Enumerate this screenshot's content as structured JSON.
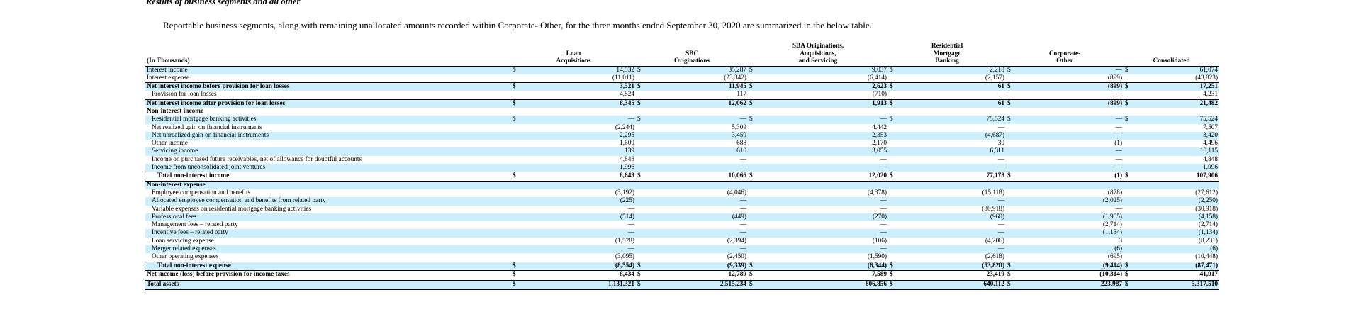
{
  "heading": "Results of business segments and all other",
  "intro": "Reportable business segments, along with remaining unallocated amounts recorded within Corporate- Other, for the three months ended September 30, 2020 are summarized in the below table.",
  "table": {
    "label_header": "(In Thousands)",
    "columns": [
      {
        "lines": [
          "Loan",
          "Acquisitions"
        ]
      },
      {
        "lines": [
          "SBC",
          "Originations"
        ]
      },
      {
        "lines": [
          "SBA Originations,",
          "Acquisitions,",
          "and Servicing"
        ]
      },
      {
        "lines": [
          "Residential",
          "Mortgage",
          "Banking"
        ]
      },
      {
        "lines": [
          "Corporate-",
          "Other"
        ]
      },
      {
        "lines": [
          "Consolidated"
        ]
      }
    ],
    "rows": [
      {
        "label": "Interest income",
        "dollar": true,
        "values": [
          "14,532",
          "35,287",
          "9,037",
          "2,218",
          "—",
          "61,074"
        ],
        "shade": true
      },
      {
        "label": "Interest expense",
        "values": [
          "(11,011)",
          "(23,342)",
          "(6,414)",
          "(2,157)",
          "(899)",
          "(43,823)"
        ],
        "shade": false,
        "bottomline": true
      },
      {
        "label": "Net interest income before provision for loan losses",
        "bold": true,
        "dollar": true,
        "values": [
          "3,521",
          "11,945",
          "2,623",
          "61",
          "(899)",
          "17,251"
        ],
        "shade": true
      },
      {
        "label": "Provision for loan losses",
        "indent": 1,
        "values": [
          "4,824",
          "117",
          "(710)",
          "—",
          "—",
          "4,231"
        ],
        "shade": false,
        "bottomline": true
      },
      {
        "label": "Net interest income after provision for loan losses",
        "bold": true,
        "dollar": true,
        "values": [
          "8,345",
          "12,062",
          "1,913",
          "61",
          "(899)",
          "21,482"
        ],
        "shade": true
      },
      {
        "label": "Non-interest income",
        "bold": true,
        "section": true,
        "values": [
          "",
          "",
          "",
          "",
          "",
          ""
        ],
        "shade": false
      },
      {
        "label": "Residential mortgage banking activities",
        "indent": 1,
        "dollar": true,
        "values": [
          "—",
          "—",
          "—",
          "75,524",
          "—",
          "75,524"
        ],
        "shade": true
      },
      {
        "label": "Net realized gain on financial instruments",
        "indent": 1,
        "values": [
          "(2,244)",
          "5,309",
          "4,442",
          "—",
          "—",
          "7,507"
        ],
        "shade": false
      },
      {
        "label": "Net unrealized gain on financial instruments",
        "indent": 1,
        "values": [
          "2,295",
          "3,459",
          "2,353",
          "(4,687)",
          "—",
          "3,420"
        ],
        "shade": true
      },
      {
        "label": "Other income",
        "indent": 1,
        "values": [
          "1,609",
          "688",
          "2,170",
          "30",
          "(1)",
          "4,496"
        ],
        "shade": false
      },
      {
        "label": "Servicing income",
        "indent": 1,
        "values": [
          "139",
          "610",
          "3,055",
          "6,311",
          "—",
          "10,115"
        ],
        "shade": true
      },
      {
        "label": "Income on purchased future receivables, net of allowance for doubtful accounts",
        "indent": 1,
        "values": [
          "4,848",
          "—",
          "—",
          "—",
          "—",
          "4,848"
        ],
        "shade": false
      },
      {
        "label": "Income from unconsolidated joint ventures",
        "indent": 1,
        "values": [
          "1,996",
          "—",
          "—",
          "—",
          "—",
          "1,996"
        ],
        "shade": true,
        "bottomline": true
      },
      {
        "label": "Total non-interest income",
        "indent": 2,
        "bold": true,
        "dollar": true,
        "values": [
          "8,643",
          "10,066",
          "12,020",
          "77,178",
          "(1)",
          "107,906"
        ],
        "shade": false,
        "bottomline": true
      },
      {
        "label": "Non-interest expense",
        "bold": true,
        "section": true,
        "values": [
          "",
          "",
          "",
          "",
          "",
          ""
        ],
        "shade": true
      },
      {
        "label": "Employee compensation and benefits",
        "indent": 1,
        "values": [
          "(3,192)",
          "(4,046)",
          "(4,378)",
          "(15,118)",
          "(878)",
          "(27,612)"
        ],
        "shade": false
      },
      {
        "label": "Allocated employee compensation and benefits from related party",
        "indent": 1,
        "values": [
          "(225)",
          "—",
          "—",
          "—",
          "(2,025)",
          "(2,250)"
        ],
        "shade": true
      },
      {
        "label": "Variable expenses on residential mortgage banking activities",
        "indent": 1,
        "values": [
          "—",
          "—",
          "—",
          "(30,918)",
          "—",
          "(30,918)"
        ],
        "shade": false
      },
      {
        "label": "Professional fees",
        "indent": 1,
        "values": [
          "(514)",
          "(449)",
          "(270)",
          "(960)",
          "(1,965)",
          "(4,158)"
        ],
        "shade": true
      },
      {
        "label": "Management fees – related party",
        "indent": 1,
        "values": [
          "—",
          "—",
          "—",
          "—",
          "(2,714)",
          "(2,714)"
        ],
        "shade": false
      },
      {
        "label": "Incentive fees – related party",
        "indent": 1,
        "values": [
          "—",
          "—",
          "—",
          "—",
          "(1,134)",
          "(1,134)"
        ],
        "shade": true
      },
      {
        "label": "Loan servicing expense",
        "indent": 1,
        "values": [
          "(1,528)",
          "(2,394)",
          "(106)",
          "(4,206)",
          "3",
          "(8,231)"
        ],
        "shade": false
      },
      {
        "label": "Merger related expenses",
        "indent": 1,
        "values": [
          "—",
          "—",
          "—",
          "—",
          "(6)",
          "(6)"
        ],
        "shade": true
      },
      {
        "label": "Other operating expenses",
        "indent": 1,
        "values": [
          "(3,095)",
          "(2,450)",
          "(1,590)",
          "(2,618)",
          "(695)",
          "(10,448)"
        ],
        "shade": false,
        "bottomline": true
      },
      {
        "label": "Total non-interest expense",
        "indent": 2,
        "bold": true,
        "dollar": true,
        "values": [
          "(8,554)",
          "(9,339)",
          "(6,344)",
          "(53,820)",
          "(9,414)",
          "(87,471)"
        ],
        "shade": true,
        "bottomline": true
      },
      {
        "label": "Net income (loss) before provision for income taxes",
        "bold": true,
        "dollar": true,
        "values": [
          "8,434",
          "12,789",
          "7,589",
          "23,419",
          "(10,314)",
          "41,917"
        ],
        "shade": false,
        "double": true
      },
      {
        "label": "Total assets",
        "bold": true,
        "dollar": true,
        "values": [
          "1,131,321",
          "2,515,234",
          "806,856",
          "640,112",
          "223,987",
          "5,317,510"
        ],
        "shade": true,
        "double": true
      }
    ],
    "dollar_sign": "$",
    "shade_color": "#cdeefc"
  }
}
